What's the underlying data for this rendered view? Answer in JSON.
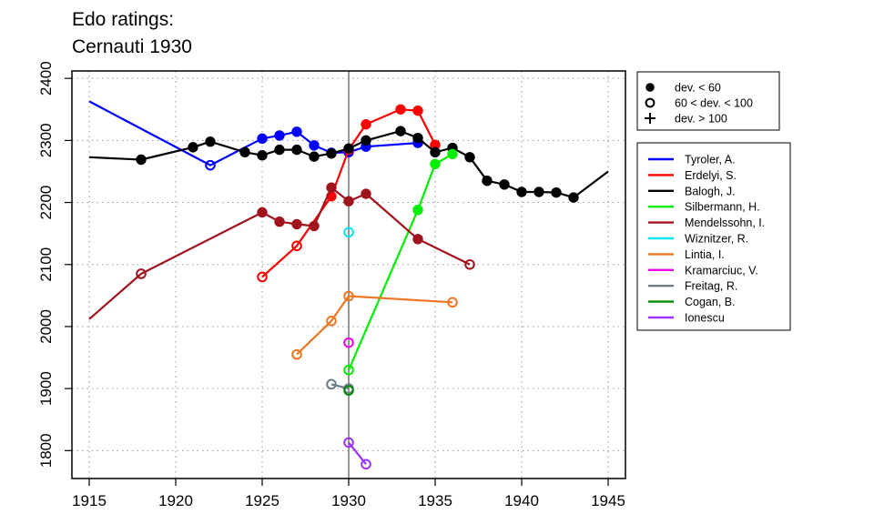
{
  "chart_data": {
    "type": "line",
    "title_lines": [
      "Edo ratings:",
      "Cernauti 1930"
    ],
    "xlabel": "",
    "ylabel": "",
    "xlim": [
      1914,
      1946
    ],
    "ylim": [
      1755,
      2412
    ],
    "x_ticks": [
      1915,
      1920,
      1925,
      1930,
      1935,
      1940,
      1945
    ],
    "y_ticks": [
      1800,
      1900,
      2000,
      2100,
      2200,
      2300,
      2400
    ],
    "grid": true,
    "reference_line_x": 1930,
    "marker_legend": [
      {
        "label": "dev. < 60",
        "marker": "filled"
      },
      {
        "label": "60 < dev. < 100",
        "marker": "open"
      },
      {
        "label": "dev. > 100",
        "marker": "plus"
      }
    ],
    "legend_placement": "right",
    "series": [
      {
        "name": "Tyroler, A.",
        "color": "#0000ff",
        "points": [
          [
            1915,
            2363,
            "none"
          ],
          [
            1922,
            2260,
            "open"
          ],
          [
            1925,
            2303,
            "filled"
          ],
          [
            1926,
            2308,
            "filled"
          ],
          [
            1927,
            2314,
            "filled"
          ],
          [
            1928,
            2292,
            "filled"
          ],
          [
            1929,
            2280,
            "filled"
          ],
          [
            1930,
            2281,
            "filled"
          ],
          [
            1931,
            2290,
            "filled"
          ],
          [
            1934,
            2296,
            "filled"
          ]
        ]
      },
      {
        "name": "Erdelyi, S.",
        "color": "#ff0000",
        "points": [
          [
            1925,
            2080,
            "open"
          ],
          [
            1927,
            2130,
            "open"
          ],
          [
            1929,
            2210,
            "filled"
          ],
          [
            1930,
            2285,
            "filled"
          ],
          [
            1931,
            2326,
            "filled"
          ],
          [
            1933,
            2350,
            "filled"
          ],
          [
            1934,
            2348,
            "filled"
          ],
          [
            1935,
            2293,
            "filled"
          ]
        ]
      },
      {
        "name": "Balogh, J.",
        "color": "#000000",
        "points": [
          [
            1915,
            2273,
            "none"
          ],
          [
            1918,
            2269,
            "filled"
          ],
          [
            1921,
            2289,
            "filled"
          ],
          [
            1922,
            2298,
            "filled"
          ],
          [
            1924,
            2281,
            "filled"
          ],
          [
            1925,
            2276,
            "filled"
          ],
          [
            1926,
            2285,
            "filled"
          ],
          [
            1927,
            2285,
            "filled"
          ],
          [
            1928,
            2274,
            "filled"
          ],
          [
            1929,
            2279,
            "filled"
          ],
          [
            1930,
            2287,
            "filled"
          ],
          [
            1931,
            2300,
            "filled"
          ],
          [
            1933,
            2315,
            "filled"
          ],
          [
            1934,
            2304,
            "filled"
          ],
          [
            1935,
            2281,
            "filled"
          ],
          [
            1936,
            2288,
            "filled"
          ],
          [
            1937,
            2273,
            "filled"
          ],
          [
            1938,
            2235,
            "filled"
          ],
          [
            1939,
            2229,
            "filled"
          ],
          [
            1940,
            2217,
            "filled"
          ],
          [
            1941,
            2217,
            "filled"
          ],
          [
            1942,
            2216,
            "filled"
          ],
          [
            1943,
            2208,
            "filled"
          ],
          [
            1945,
            2250,
            "none"
          ]
        ]
      },
      {
        "name": "Silbermann, H.",
        "color": "#00ee00",
        "points": [
          [
            1930,
            1930,
            "open"
          ],
          [
            1934,
            2188,
            "filled"
          ],
          [
            1935,
            2262,
            "filled"
          ],
          [
            1936,
            2278,
            "filled"
          ]
        ]
      },
      {
        "name": "Mendelssohn, I.",
        "color": "#a0141e",
        "points": [
          [
            1915,
            2012,
            "none"
          ],
          [
            1918,
            2085,
            "open"
          ],
          [
            1925,
            2184,
            "filled"
          ],
          [
            1926,
            2169,
            "filled"
          ],
          [
            1927,
            2165,
            "filled"
          ],
          [
            1928,
            2162,
            "filled"
          ],
          [
            1929,
            2224,
            "filled"
          ],
          [
            1930,
            2202,
            "filled"
          ],
          [
            1931,
            2214,
            "filled"
          ],
          [
            1934,
            2141,
            "filled"
          ],
          [
            1937,
            2100,
            "open"
          ]
        ]
      },
      {
        "name": "Wiznitzer, R.",
        "color": "#00e5ee",
        "points": [
          [
            1930,
            2152,
            "open"
          ]
        ]
      },
      {
        "name": "Lintia, I.",
        "color": "#ee7621",
        "points": [
          [
            1927,
            1955,
            "open"
          ],
          [
            1929,
            2009,
            "open"
          ],
          [
            1930,
            2049,
            "open"
          ],
          [
            1936,
            2039,
            "open"
          ]
        ]
      },
      {
        "name": "Kramarciuc, V.",
        "color": "#ee00ee",
        "points": [
          [
            1930,
            1974,
            "open"
          ]
        ]
      },
      {
        "name": "Freitag, R.",
        "color": "#6c7b8b",
        "points": [
          [
            1929,
            1907,
            "open"
          ],
          [
            1930,
            1900,
            "open"
          ]
        ]
      },
      {
        "name": "Cogan, B.",
        "color": "#008b00",
        "points": [
          [
            1930,
            1897,
            "open"
          ]
        ]
      },
      {
        "name": "Ionescu",
        "color": "#9b30ff",
        "points": [
          [
            1930,
            1813,
            "open"
          ],
          [
            1931,
            1778,
            "open"
          ]
        ]
      }
    ]
  }
}
